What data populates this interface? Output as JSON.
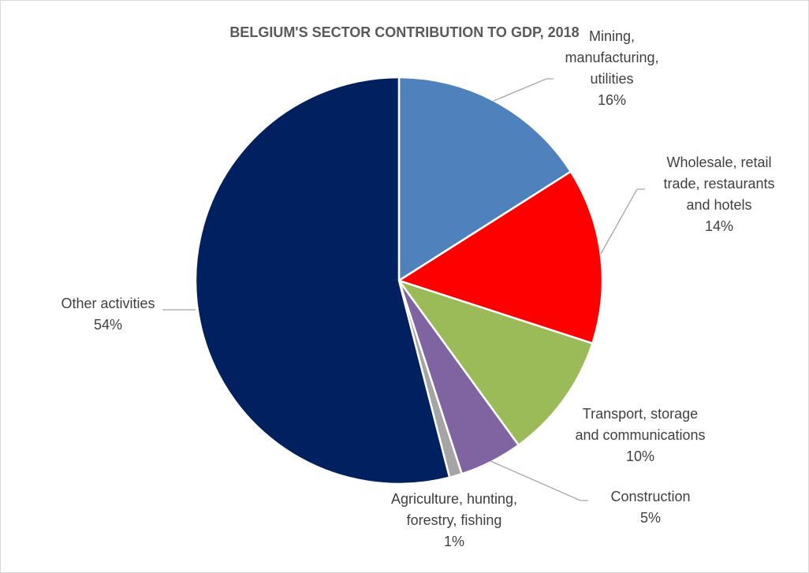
{
  "chart_data": {
    "type": "pie",
    "title": "BELGIUM'S SECTOR CONTRIBUTION TO GDP, 2018",
    "categories": [
      "Mining,\nmanufacturing,\nutilities",
      "Wholesale, retail\ntrade, restaurants\nand hotels",
      "Transport, storage\nand communications",
      "Construction",
      "Agriculture, hunting,\nforestry, fishing",
      "Other activities"
    ],
    "values": [
      16,
      14,
      10,
      5,
      1,
      54
    ],
    "value_labels": [
      "16%",
      "14%",
      "10%",
      "5%",
      "1%",
      "54%"
    ],
    "colors": [
      "#4f81bd",
      "#ff0000",
      "#9bbb59",
      "#8064a2",
      "#a5a5a5",
      "#002060"
    ]
  }
}
